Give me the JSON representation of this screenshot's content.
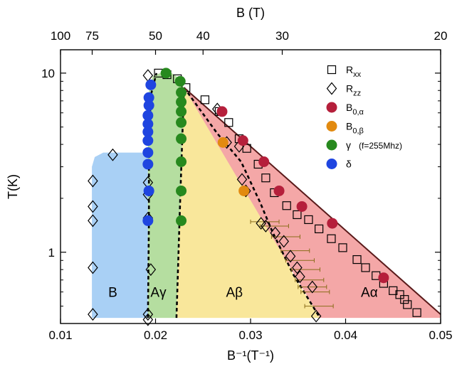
{
  "chart_data": {
    "type": "scatter",
    "title": "",
    "xlabel": "B⁻¹(T⁻¹)",
    "ylabel": "T(K)",
    "x2label": "B (T)",
    "xlim": [
      0.01,
      0.05
    ],
    "ylim": [
      0.4,
      13.5
    ],
    "yscale": "log",
    "grid": false,
    "legend_position": "top-right",
    "x_ticks": [
      {
        "value": 0.01,
        "label": "0.01"
      },
      {
        "value": 0.02,
        "label": "0.02"
      },
      {
        "value": 0.03,
        "label": "0.03"
      },
      {
        "value": 0.04,
        "label": "0.04"
      },
      {
        "value": 0.05,
        "label": "0.05"
      }
    ],
    "y_ticks": [
      {
        "value": 1,
        "label": "1"
      },
      {
        "value": 10,
        "label": "10"
      }
    ],
    "x2_ticks": [
      {
        "value": 100,
        "label": "100"
      },
      {
        "value": 75,
        "label": "75"
      },
      {
        "value": 50,
        "label": "50"
      },
      {
        "value": 40,
        "label": "40"
      },
      {
        "value": 30,
        "label": "30"
      },
      {
        "value": 20,
        "label": "20"
      }
    ],
    "regions": [
      {
        "label": "B",
        "color": "#a9d0f5",
        "label_x": 0.0155,
        "label_y": 0.6,
        "polygon": [
          [
            0.0133,
            0.43
          ],
          [
            0.0133,
            3.0
          ],
          [
            0.0136,
            3.4
          ],
          [
            0.0145,
            3.6
          ],
          [
            0.0192,
            3.6
          ],
          [
            0.0192,
            0.43
          ]
        ]
      },
      {
        "label": "Aγ",
        "color": "#b5dea0",
        "label_x": 0.0203,
        "label_y": 0.6,
        "polygon": [
          [
            0.0192,
            0.43
          ],
          [
            0.0192,
            7.5
          ],
          [
            0.0197,
            9.6
          ],
          [
            0.0212,
            10.4
          ],
          [
            0.0222,
            9.6
          ],
          [
            0.023,
            8.3
          ],
          [
            0.0222,
            0.43
          ]
        ]
      },
      {
        "label": "Aβ",
        "color": "#f9e79b",
        "label_x": 0.0283,
        "label_y": 0.6,
        "polygon": [
          [
            0.0222,
            0.43
          ],
          [
            0.023,
            8.3
          ],
          [
            0.0265,
            4.6
          ],
          [
            0.029,
            3.2
          ],
          [
            0.031,
            1.9
          ],
          [
            0.0323,
            1.3
          ],
          [
            0.0345,
            0.75
          ],
          [
            0.0373,
            0.43
          ]
        ]
      },
      {
        "label": "Aα",
        "color": "#f4a7a7",
        "label_x": 0.0425,
        "label_y": 0.6,
        "polygon": [
          [
            0.023,
            8.3
          ],
          [
            0.0373,
            0.43
          ],
          [
            0.05,
            0.43
          ],
          [
            0.05,
            0.45
          ]
        ]
      }
    ],
    "boundary_lines": [
      {
        "style": "dashed",
        "points": [
          [
            0.0192,
            0.43
          ],
          [
            0.0193,
            1.5
          ],
          [
            0.0193,
            4.0
          ],
          [
            0.0195,
            7.5
          ],
          [
            0.0201,
            10.0
          ]
        ]
      },
      {
        "style": "dashed",
        "points": [
          [
            0.0222,
            0.43
          ],
          [
            0.0226,
            2.0
          ],
          [
            0.023,
            8.3
          ]
        ]
      },
      {
        "style": "dashed",
        "points": [
          [
            0.023,
            8.3
          ],
          [
            0.0265,
            4.6
          ],
          [
            0.029,
            3.2
          ],
          [
            0.031,
            1.9
          ],
          [
            0.0323,
            1.3
          ],
          [
            0.0345,
            0.75
          ],
          [
            0.0373,
            0.43
          ]
        ]
      },
      {
        "style": "solid",
        "points": [
          [
            0.023,
            8.3
          ],
          [
            0.05,
            0.45
          ]
        ]
      }
    ],
    "series": [
      {
        "name": "Rxx",
        "sub": "xx",
        "marker": "square",
        "color": "#000000",
        "points": [
          [
            0.0203,
            10.0
          ],
          [
            0.0212,
            9.8
          ],
          [
            0.0223,
            9.3
          ],
          [
            0.0232,
            8.3
          ],
          [
            0.0252,
            7.1
          ],
          [
            0.0267,
            6.1
          ],
          [
            0.0277,
            5.3
          ],
          [
            0.0288,
            4.3
          ],
          [
            0.0296,
            3.8
          ],
          [
            0.0308,
            3.1
          ],
          [
            0.0316,
            2.6
          ],
          [
            0.0325,
            2.15
          ],
          [
            0.0338,
            1.82
          ],
          [
            0.0349,
            1.62
          ],
          [
            0.0361,
            1.52
          ],
          [
            0.0372,
            1.35
          ],
          [
            0.0385,
            1.19
          ],
          [
            0.0397,
            1.06
          ],
          [
            0.0412,
            0.91
          ],
          [
            0.0421,
            0.82
          ],
          [
            0.0432,
            0.74
          ],
          [
            0.044,
            0.67
          ],
          [
            0.045,
            0.61
          ],
          [
            0.0457,
            0.58
          ],
          [
            0.0462,
            0.545
          ],
          [
            0.0465,
            0.51
          ],
          [
            0.0475,
            0.46
          ]
        ]
      },
      {
        "name": "Rzz",
        "sub": "zz",
        "marker": "diamond",
        "color": "#000000",
        "points": [
          [
            0.0134,
            2.5
          ],
          [
            0.0134,
            1.8
          ],
          [
            0.0134,
            1.5
          ],
          [
            0.0134,
            0.82
          ],
          [
            0.0134,
            0.45
          ],
          [
            0.0155,
            3.5
          ],
          [
            0.0192,
            9.7
          ],
          [
            0.0192,
            4.7
          ],
          [
            0.0192,
            2.45
          ],
          [
            0.0192,
            2.1
          ],
          [
            0.0192,
            1.55
          ],
          [
            0.0192,
            0.45
          ],
          [
            0.0192,
            0.42
          ],
          [
            0.0195,
            0.8
          ],
          [
            0.0265,
            6.3
          ],
          [
            0.0275,
            4.1
          ],
          [
            0.0288,
            3.9
          ],
          [
            0.0291,
            2.55
          ],
          [
            0.0295,
            2.2
          ],
          [
            0.0311,
            1.45
          ],
          [
            0.0316,
            1.4
          ],
          [
            0.0326,
            1.28
          ],
          [
            0.0335,
            1.15
          ],
          [
            0.0342,
            0.95
          ],
          [
            0.0349,
            0.82
          ],
          [
            0.0352,
            0.73
          ],
          [
            0.0365,
            0.64
          ],
          [
            0.0369,
            0.44
          ]
        ]
      },
      {
        "name": "B0,α",
        "sub": "0,α",
        "marker": "circle",
        "color": "#b51f3b",
        "points": [
          [
            0.027,
            6.1
          ],
          [
            0.0292,
            4.2
          ],
          [
            0.0314,
            3.2
          ],
          [
            0.033,
            2.2
          ],
          [
            0.0354,
            1.8
          ],
          [
            0.0386,
            1.45
          ],
          [
            0.044,
            0.72
          ]
        ]
      },
      {
        "name": "B0,β",
        "sub": "0,β",
        "marker": "circle",
        "color": "#e28a10",
        "points": [
          [
            0.0271,
            4.1
          ],
          [
            0.0293,
            2.2
          ]
        ]
      },
      {
        "name": "γ",
        "note": "(f=255Mhz)",
        "marker": "circle",
        "color": "#27891e",
        "points": [
          [
            0.0211,
            10.0
          ],
          [
            0.0226,
            9.0
          ],
          [
            0.0227,
            7.8
          ],
          [
            0.0227,
            6.9
          ],
          [
            0.0227,
            6.1
          ],
          [
            0.0227,
            5.3
          ],
          [
            0.0227,
            4.3
          ],
          [
            0.0227,
            3.2
          ],
          [
            0.0227,
            2.2
          ],
          [
            0.0227,
            1.5
          ]
        ]
      },
      {
        "name": "δ",
        "marker": "circle",
        "color": "#1f45e0",
        "points": [
          [
            0.0195,
            8.6
          ],
          [
            0.0193,
            7.3
          ],
          [
            0.0193,
            6.6
          ],
          [
            0.0192,
            5.8
          ],
          [
            0.0192,
            5.2
          ],
          [
            0.0192,
            4.7
          ],
          [
            0.0192,
            4.2
          ],
          [
            0.0192,
            3.6
          ],
          [
            0.0192,
            3.1
          ],
          [
            0.0193,
            2.2
          ],
          [
            0.0192,
            1.5
          ]
        ]
      }
    ],
    "error_bars": [
      {
        "x": 0.0315,
        "y": 1.48,
        "xerr": 0.0015
      },
      {
        "x": 0.0325,
        "y": 1.4,
        "xerr": 0.0015
      },
      {
        "x": 0.0337,
        "y": 1.22,
        "xerr": 0.0015
      },
      {
        "x": 0.0347,
        "y": 1.02,
        "xerr": 0.0015
      },
      {
        "x": 0.0352,
        "y": 0.9,
        "xerr": 0.0015
      },
      {
        "x": 0.0358,
        "y": 0.8,
        "xerr": 0.0015
      },
      {
        "x": 0.0362,
        "y": 0.7,
        "xerr": 0.0015
      },
      {
        "x": 0.0365,
        "y": 0.64,
        "xerr": 0.0015
      },
      {
        "x": 0.0368,
        "y": 0.6,
        "xerr": 0.0015
      },
      {
        "x": 0.0372,
        "y": 0.5,
        "xerr": 0.0015
      }
    ]
  }
}
